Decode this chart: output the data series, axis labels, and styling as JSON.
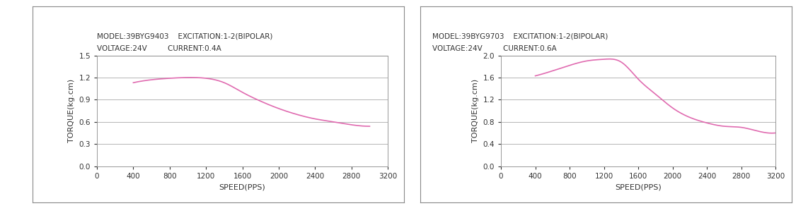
{
  "chart1": {
    "info_line1": "MODEL:39BYG9403    EXCITATION:1-2(BIPOLAR)",
    "info_line2": "VOLTAGE:24V         CURRENT:0.4A",
    "x": [
      400,
      600,
      800,
      1000,
      1200,
      1400,
      1600,
      1800,
      2000,
      2200,
      2400,
      2600,
      2800,
      3000
    ],
    "y": [
      1.13,
      1.17,
      1.19,
      1.2,
      1.19,
      1.13,
      1.0,
      0.88,
      0.78,
      0.7,
      0.64,
      0.6,
      0.56,
      0.54
    ],
    "xlim": [
      0,
      3200
    ],
    "ylim": [
      0,
      1.5
    ],
    "xticks": [
      0,
      400,
      800,
      1200,
      1600,
      2000,
      2400,
      2800,
      3200
    ],
    "yticks": [
      0,
      0.3,
      0.6,
      0.9,
      1.2,
      1.5
    ],
    "xlabel": "SPEED(PPS)",
    "ylabel": "TORQUE(kg.cm)"
  },
  "chart2": {
    "info_line1": "MODEL:39BYG9703    EXCITATION:1-2(BIPOLAR)",
    "info_line2": "VOLTAGE:24V         CURRENT:0.6A",
    "x": [
      400,
      600,
      800,
      1000,
      1200,
      1400,
      1600,
      1800,
      2000,
      2200,
      2400,
      2600,
      2800,
      3000,
      3200
    ],
    "y": [
      1.63,
      1.72,
      1.82,
      1.9,
      1.93,
      1.88,
      1.57,
      1.3,
      1.05,
      0.88,
      0.78,
      0.72,
      0.7,
      0.63,
      0.6
    ],
    "xlim": [
      0,
      3200
    ],
    "ylim": [
      0,
      2.0
    ],
    "xticks": [
      0,
      400,
      800,
      1200,
      1600,
      2000,
      2400,
      2800,
      3200
    ],
    "yticks": [
      0,
      0.4,
      0.8,
      1.2,
      1.6,
      2.0
    ],
    "xlabel": "SPEED(PPS)",
    "ylabel": "TORQUE(kg.cm)"
  },
  "line_color": "#e06bb0",
  "grid_color": "#aaaaaa",
  "background_color": "#ffffff",
  "text_color": "#333333",
  "font_size_info": 7.5,
  "font_size_axis_label": 8,
  "font_size_tick": 7.5
}
